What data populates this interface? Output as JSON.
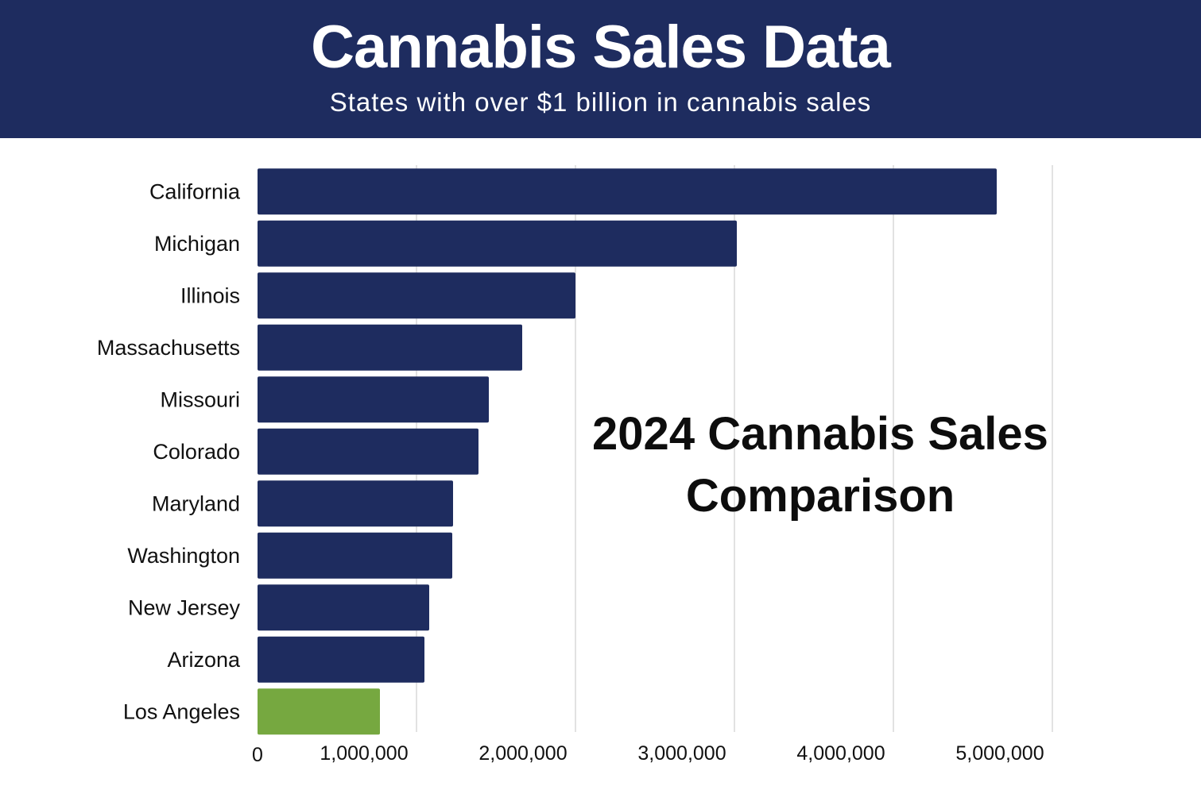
{
  "header": {
    "title": "Cannabis Sales Data",
    "subtitle": "States with over $1 billion in cannabis sales"
  },
  "chart_data": {
    "type": "bar",
    "orientation": "horizontal",
    "categories": [
      "California",
      "Michigan",
      "Illinois",
      "Massachusetts",
      "Missouri",
      "Colorado",
      "Maryland",
      "Washington",
      "New Jersey",
      "Arizona",
      "Los Angeles"
    ],
    "values": [
      4650000,
      3015000,
      2000000,
      1665000,
      1455000,
      1390000,
      1230000,
      1225000,
      1080000,
      1050000,
      770000
    ],
    "bar_colors": [
      "#1e2c5f",
      "#1e2c5f",
      "#1e2c5f",
      "#1e2c5f",
      "#1e2c5f",
      "#1e2c5f",
      "#1e2c5f",
      "#1e2c5f",
      "#1e2c5f",
      "#1e2c5f",
      "#76a840"
    ],
    "xlim": [
      0,
      5000000
    ],
    "xticks": [
      0,
      1000000,
      2000000,
      3000000,
      4000000,
      5000000
    ],
    "xtick_labels": [
      "0",
      "1,000,000",
      "2,000,000",
      "3,000,000",
      "4,000,000",
      "5,000,000"
    ],
    "grid": "vertical",
    "annotation": {
      "lines": [
        "2024 Cannabis Sales",
        "Comparison"
      ]
    }
  }
}
